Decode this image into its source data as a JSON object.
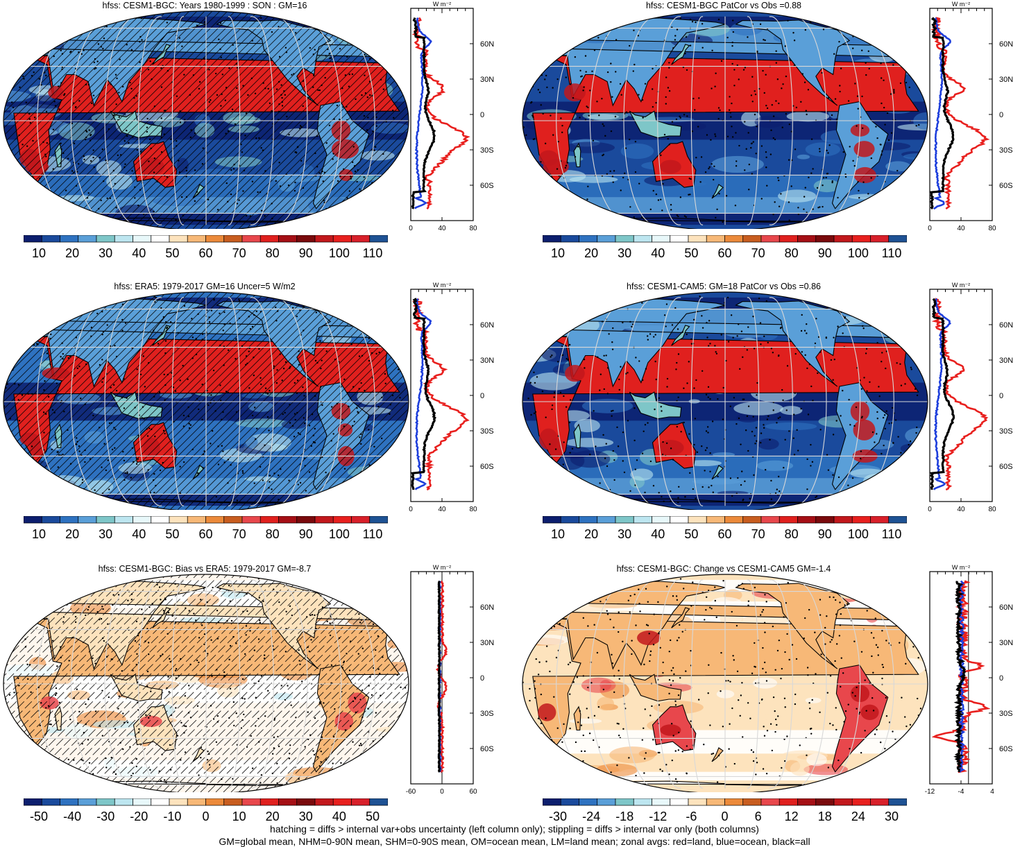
{
  "panels": [
    {
      "title": "hfss: CESM1-BGC: Years 1980-1999 : SON : GM=16",
      "kind": "abs",
      "hatch": true,
      "stipple": true,
      "profile_xticks": [
        "0",
        "40",
        "80"
      ],
      "profile_lat_ticks": [
        "60N",
        "30N",
        "0",
        "30S",
        "60S"
      ],
      "profile_unit": "W m⁻²"
    },
    {
      "title": "hfss: CESM1-BGC PatCor vs Obs =0.88",
      "kind": "abs",
      "hatch": false,
      "stipple": true,
      "profile_xticks": [
        "0",
        "40",
        "80"
      ],
      "profile_lat_ticks": [
        "60N",
        "30N",
        "0",
        "30S",
        "60S"
      ],
      "profile_unit": "W m⁻²"
    },
    {
      "title": "hfss: ERA5: 1979-2017 GM=16 Uncer=5 W/m2",
      "kind": "abs",
      "hatch": true,
      "stipple": true,
      "profile_xticks": [
        "0",
        "40",
        "80"
      ],
      "profile_lat_ticks": [
        "60N",
        "30N",
        "0",
        "30S",
        "60S"
      ],
      "profile_unit": "W m⁻²"
    },
    {
      "title": "hfss: CESM1-CAM5: GM=18 PatCor vs Obs =0.86",
      "kind": "abs",
      "hatch": false,
      "stipple": true,
      "profile_xticks": [
        "0",
        "40",
        "80"
      ],
      "profile_lat_ticks": [
        "60N",
        "30N",
        "0",
        "30S",
        "60S"
      ],
      "profile_unit": "W m⁻²"
    },
    {
      "title": "hfss: CESM1-BGC: Bias vs ERA5: 1979-2017  GM=-8.7",
      "kind": "bias",
      "hatch": true,
      "stipple": true,
      "profile_xticks": [
        "-60",
        "0",
        "60"
      ],
      "profile_lat_ticks": [
        "60N",
        "30N",
        "0",
        "30S",
        "60S"
      ],
      "profile_unit": "W m⁻²"
    },
    {
      "title": "hfss: CESM1-BGC: Change vs CESM1-CAM5 GM=-1.4",
      "kind": "change",
      "hatch": false,
      "stipple": true,
      "profile_xticks": [
        "-12",
        "-4",
        "4"
      ],
      "profile_lat_ticks": [
        "60N",
        "30N",
        "0",
        "30S",
        "60S"
      ],
      "profile_unit": "W m⁻²"
    }
  ],
  "colorbars": {
    "abs": {
      "labels": [
        "10",
        "20",
        "30",
        "40",
        "50",
        "60",
        "70",
        "80",
        "90",
        "100",
        "110"
      ],
      "colors": [
        "#0c1e6e",
        "#1a4a9c",
        "#2e72c0",
        "#5a9fd8",
        "#7ec6c8",
        "#bde6f0",
        "#e8f8fa",
        "#ffffff",
        "#fde3bd",
        "#f7b877",
        "#ec8a3a",
        "#c85d1f",
        "#e8474c",
        "#e0201e",
        "#a50f15",
        "#7a0a0c",
        "#c2181c",
        "#e8201e",
        "#d8202a",
        "#1e5294"
      ]
    },
    "bias": {
      "labels": [
        "-50",
        "-40",
        "-30",
        "-20",
        "-10",
        "0",
        "10",
        "20",
        "30",
        "40",
        "50"
      ],
      "colors": [
        "#0c1e6e",
        "#1a4a9c",
        "#2e72c0",
        "#5a9fd8",
        "#7ec6c8",
        "#bde6f0",
        "#e8f8fa",
        "#ffffff",
        "#fde3bd",
        "#f7b877",
        "#ec8a3a",
        "#c85d1f",
        "#e8474c",
        "#e0201e",
        "#a50f15",
        "#7a0a0c",
        "#c2181c",
        "#e8201e",
        "#d8202a",
        "#1e5294"
      ]
    },
    "change": {
      "labels": [
        "-30",
        "-24",
        "-18",
        "-12",
        "-6",
        "0",
        "6",
        "12",
        "18",
        "24",
        "30"
      ],
      "colors": [
        "#0c1e6e",
        "#1a4a9c",
        "#2e72c0",
        "#5a9fd8",
        "#7ec6c8",
        "#bde6f0",
        "#e8f8fa",
        "#ffffff",
        "#fde3bd",
        "#f7b877",
        "#ec8a3a",
        "#c85d1f",
        "#e8474c",
        "#e0201e",
        "#a50f15",
        "#7a0a0c",
        "#c2181c",
        "#e8201e",
        "#d8202a",
        "#1e5294"
      ]
    }
  },
  "footer": {
    "line1": "hatching = diffs > internal var+obs uncertainty (left column only); stippling = diffs > internal var only (both columns)",
    "line2": "GM=global mean, NHM=0-90N mean, SHM=0-90S mean, OM=ocean mean, LM=land mean; zonal avgs: red=land, blue=ocean, black=all"
  },
  "style": {
    "land_color": "#e8201e",
    "ocean_color": "#1e3fdc",
    "all_color": "#000000"
  }
}
